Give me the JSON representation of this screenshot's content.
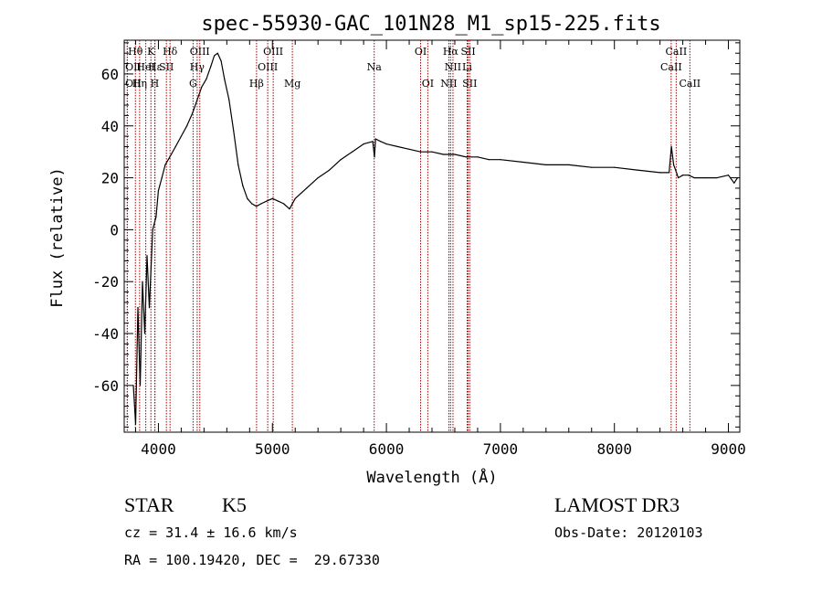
{
  "chart_data": {
    "type": "line",
    "title": "spec-55930-GAC_101N28_M1_sp15-225.fits",
    "xlabel": "Wavelength (Å)",
    "ylabel": "Flux (relative)",
    "xlim": [
      3700,
      9100
    ],
    "ylim": [
      -78,
      73
    ],
    "xticks": [
      4000,
      5000,
      6000,
      7000,
      8000,
      9000
    ],
    "yticks": [
      -60,
      -40,
      -20,
      0,
      20,
      40,
      60
    ],
    "series": [
      {
        "name": "spectrum",
        "x": [
          3780,
          3800,
          3820,
          3840,
          3860,
          3880,
          3900,
          3920,
          3950,
          3980,
          4000,
          4030,
          4060,
          4100,
          4150,
          4200,
          4250,
          4300,
          4340,
          4380,
          4420,
          4460,
          4490,
          4520,
          4550,
          4580,
          4620,
          4660,
          4700,
          4740,
          4780,
          4820,
          4860,
          4900,
          4950,
          5000,
          5050,
          5100,
          5150,
          5200,
          5250,
          5300,
          5400,
          5500,
          5600,
          5700,
          5800,
          5880,
          5895,
          5905,
          5950,
          6000,
          6100,
          6200,
          6300,
          6400,
          6500,
          6600,
          6700,
          6800,
          6900,
          7000,
          7200,
          7400,
          7600,
          7800,
          8000,
          8200,
          8400,
          8480,
          8500,
          8520,
          8545,
          8560,
          8600,
          8650,
          8700,
          8800,
          8900,
          9000,
          9050,
          9080
        ],
        "y": [
          -60,
          -75,
          -30,
          -60,
          -20,
          -40,
          -10,
          -30,
          0,
          5,
          15,
          20,
          25,
          28,
          32,
          36,
          40,
          45,
          50,
          55,
          58,
          63,
          67,
          68,
          65,
          58,
          50,
          38,
          25,
          17,
          12,
          10,
          9,
          10,
          11,
          12,
          11,
          10,
          8,
          12,
          14,
          16,
          20,
          23,
          27,
          30,
          33,
          34,
          28,
          35,
          34,
          33,
          32,
          31,
          30,
          30,
          29,
          29,
          28,
          28,
          27,
          27,
          26,
          25,
          25,
          24,
          24,
          23,
          22,
          22,
          32,
          25,
          22,
          20,
          21,
          21,
          20,
          20,
          20,
          21,
          18,
          20
        ]
      }
    ],
    "spectral_lines": [
      {
        "label": "Hθ",
        "x": 3798,
        "row": 0
      },
      {
        "label": "OII",
        "x": 3727,
        "row": 1
      },
      {
        "label": "OII",
        "x": 3727,
        "row": 2
      },
      {
        "label": "K",
        "x": 3934,
        "row": 0
      },
      {
        "label": "Hε",
        "x": 3970,
        "row": 1
      },
      {
        "label": "HeI",
        "x": 3889,
        "row": 1
      },
      {
        "label": "Hη",
        "x": 3835,
        "row": 2
      },
      {
        "label": "H",
        "x": 3968,
        "row": 2
      },
      {
        "label": "Hδ",
        "x": 4102,
        "row": 0
      },
      {
        "label": "SII",
        "x": 4070,
        "row": 1
      },
      {
        "label": "OIII",
        "x": 4363,
        "row": 0
      },
      {
        "label": "Hγ",
        "x": 4340,
        "row": 1
      },
      {
        "label": "G",
        "x": 4304,
        "row": 2
      },
      {
        "label": "OIII",
        "x": 5007,
        "row": 0
      },
      {
        "label": "OIII",
        "x": 4959,
        "row": 1
      },
      {
        "label": "Hβ",
        "x": 4861,
        "row": 2
      },
      {
        "label": "Mg",
        "x": 5175,
        "row": 2
      },
      {
        "label": "Na",
        "x": 5893,
        "row": 1
      },
      {
        "label": "OI",
        "x": 6300,
        "row": 0
      },
      {
        "label": "OI",
        "x": 6363,
        "row": 2
      },
      {
        "label": "Hα",
        "x": 6563,
        "row": 0
      },
      {
        "label": "NII",
        "x": 6584,
        "row": 1
      },
      {
        "label": "NII",
        "x": 6548,
        "row": 2
      },
      {
        "label": "SII",
        "x": 6717,
        "row": 0
      },
      {
        "label": "Li",
        "x": 6708,
        "row": 1
      },
      {
        "label": "SII",
        "x": 6731,
        "row": 2
      },
      {
        "label": "CaII",
        "x": 8542,
        "row": 0
      },
      {
        "label": "CaII",
        "x": 8498,
        "row": 1
      },
      {
        "label": "CaII",
        "x": 8662,
        "row": 2
      }
    ]
  },
  "info": {
    "object_class": "STAR",
    "subclass": "K5",
    "survey": "LAMOST DR3",
    "redshift": "cz = 31.4 ± 16.6 km/s",
    "obs_date": "Obs-Date: 20120103",
    "coords": "RA = 100.19420, DEC =  29.67330"
  },
  "colors": {
    "line_marker": "#a00000",
    "spectrum": "#000000"
  }
}
